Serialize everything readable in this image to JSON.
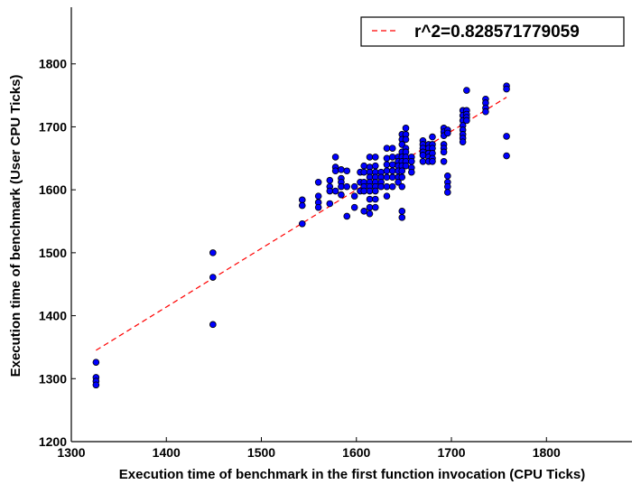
{
  "chart_data": {
    "type": "scatter",
    "title": "",
    "xlabel": "Execution time of benchmark in the first function invocation (CPU Ticks)",
    "ylabel": "Execution time of benchmark (User CPU Ticks)",
    "xlim": [
      1300,
      1890
    ],
    "ylim": [
      1200,
      1890
    ],
    "xticks": [
      1300,
      1400,
      1500,
      1600,
      1700,
      1800
    ],
    "yticks": [
      1200,
      1300,
      1400,
      1500,
      1600,
      1700,
      1800
    ],
    "grid": false,
    "legend": {
      "position": "top-right",
      "entries": [
        "r^2=0.828571779059"
      ]
    },
    "colors": {
      "points": "#0000ff",
      "point_edge": "#000000",
      "fit_line": "#ff0000"
    },
    "series": [
      {
        "name": "",
        "points": [
          [
            1326,
            1326
          ],
          [
            1326,
            1302
          ],
          [
            1326,
            1296
          ],
          [
            1326,
            1290
          ],
          [
            1449,
            1500
          ],
          [
            1449,
            1461
          ],
          [
            1449,
            1386
          ],
          [
            1543,
            1584
          ],
          [
            1543,
            1575
          ],
          [
            1543,
            1546
          ],
          [
            1560,
            1612
          ],
          [
            1560,
            1590
          ],
          [
            1560,
            1580
          ],
          [
            1560,
            1572
          ],
          [
            1572,
            1615
          ],
          [
            1572,
            1605
          ],
          [
            1572,
            1598
          ],
          [
            1572,
            1578
          ],
          [
            1578,
            1652
          ],
          [
            1578,
            1636
          ],
          [
            1578,
            1630
          ],
          [
            1578,
            1598
          ],
          [
            1584,
            1632
          ],
          [
            1584,
            1618
          ],
          [
            1584,
            1612
          ],
          [
            1584,
            1605
          ],
          [
            1584,
            1592
          ],
          [
            1590,
            1630
          ],
          [
            1590,
            1605
          ],
          [
            1590,
            1558
          ],
          [
            1598,
            1605
          ],
          [
            1598,
            1590
          ],
          [
            1598,
            1572
          ],
          [
            1604,
            1628
          ],
          [
            1604,
            1612
          ],
          [
            1604,
            1598
          ],
          [
            1608,
            1638
          ],
          [
            1608,
            1628
          ],
          [
            1608,
            1612
          ],
          [
            1608,
            1605
          ],
          [
            1608,
            1598
          ],
          [
            1608,
            1566
          ],
          [
            1614,
            1652
          ],
          [
            1614,
            1636
          ],
          [
            1614,
            1628
          ],
          [
            1614,
            1620
          ],
          [
            1614,
            1612
          ],
          [
            1614,
            1605
          ],
          [
            1614,
            1598
          ],
          [
            1614,
            1585
          ],
          [
            1614,
            1572
          ],
          [
            1614,
            1562
          ],
          [
            1620,
            1652
          ],
          [
            1620,
            1638
          ],
          [
            1620,
            1628
          ],
          [
            1620,
            1620
          ],
          [
            1620,
            1612
          ],
          [
            1620,
            1605
          ],
          [
            1620,
            1598
          ],
          [
            1620,
            1585
          ],
          [
            1620,
            1572
          ],
          [
            1626,
            1628
          ],
          [
            1626,
            1620
          ],
          [
            1626,
            1612
          ],
          [
            1626,
            1605
          ],
          [
            1632,
            1666
          ],
          [
            1632,
            1650
          ],
          [
            1632,
            1640
          ],
          [
            1632,
            1630
          ],
          [
            1632,
            1620
          ],
          [
            1632,
            1605
          ],
          [
            1632,
            1590
          ],
          [
            1638,
            1666
          ],
          [
            1638,
            1652
          ],
          [
            1638,
            1640
          ],
          [
            1638,
            1630
          ],
          [
            1638,
            1620
          ],
          [
            1638,
            1605
          ],
          [
            1644,
            1652
          ],
          [
            1644,
            1645
          ],
          [
            1644,
            1638
          ],
          [
            1644,
            1630
          ],
          [
            1644,
            1620
          ],
          [
            1644,
            1612
          ],
          [
            1648,
            1688
          ],
          [
            1648,
            1680
          ],
          [
            1648,
            1672
          ],
          [
            1648,
            1660
          ],
          [
            1648,
            1652
          ],
          [
            1648,
            1645
          ],
          [
            1648,
            1638
          ],
          [
            1648,
            1630
          ],
          [
            1648,
            1620
          ],
          [
            1648,
            1605
          ],
          [
            1648,
            1566
          ],
          [
            1648,
            1556
          ],
          [
            1652,
            1698
          ],
          [
            1652,
            1688
          ],
          [
            1652,
            1680
          ],
          [
            1652,
            1666
          ],
          [
            1652,
            1660
          ],
          [
            1652,
            1652
          ],
          [
            1652,
            1645
          ],
          [
            1652,
            1638
          ],
          [
            1658,
            1652
          ],
          [
            1658,
            1645
          ],
          [
            1658,
            1635
          ],
          [
            1658,
            1628
          ],
          [
            1670,
            1678
          ],
          [
            1670,
            1672
          ],
          [
            1670,
            1666
          ],
          [
            1670,
            1660
          ],
          [
            1670,
            1655
          ],
          [
            1670,
            1645
          ],
          [
            1676,
            1672
          ],
          [
            1676,
            1666
          ],
          [
            1676,
            1658
          ],
          [
            1676,
            1652
          ],
          [
            1676,
            1645
          ],
          [
            1680,
            1684
          ],
          [
            1680,
            1672
          ],
          [
            1680,
            1666
          ],
          [
            1680,
            1658
          ],
          [
            1680,
            1650
          ],
          [
            1680,
            1645
          ],
          [
            1692,
            1698
          ],
          [
            1692,
            1692
          ],
          [
            1692,
            1686
          ],
          [
            1692,
            1672
          ],
          [
            1692,
            1666
          ],
          [
            1692,
            1660
          ],
          [
            1692,
            1645
          ],
          [
            1696,
            1695
          ],
          [
            1696,
            1690
          ],
          [
            1696,
            1622
          ],
          [
            1696,
            1612
          ],
          [
            1696,
            1605
          ],
          [
            1696,
            1596
          ],
          [
            1712,
            1726
          ],
          [
            1712,
            1718
          ],
          [
            1712,
            1710
          ],
          [
            1712,
            1702
          ],
          [
            1712,
            1695
          ],
          [
            1712,
            1688
          ],
          [
            1712,
            1682
          ],
          [
            1712,
            1676
          ],
          [
            1716,
            1758
          ],
          [
            1716,
            1726
          ],
          [
            1716,
            1720
          ],
          [
            1716,
            1715
          ],
          [
            1716,
            1710
          ],
          [
            1736,
            1744
          ],
          [
            1736,
            1738
          ],
          [
            1736,
            1730
          ],
          [
            1736,
            1724
          ],
          [
            1758,
            1765
          ],
          [
            1758,
            1760
          ],
          [
            1758,
            1685
          ],
          [
            1758,
            1654
          ]
        ]
      }
    ],
    "fit_line": {
      "x": [
        1326,
        1758
      ],
      "y": [
        1345,
        1747
      ]
    }
  }
}
